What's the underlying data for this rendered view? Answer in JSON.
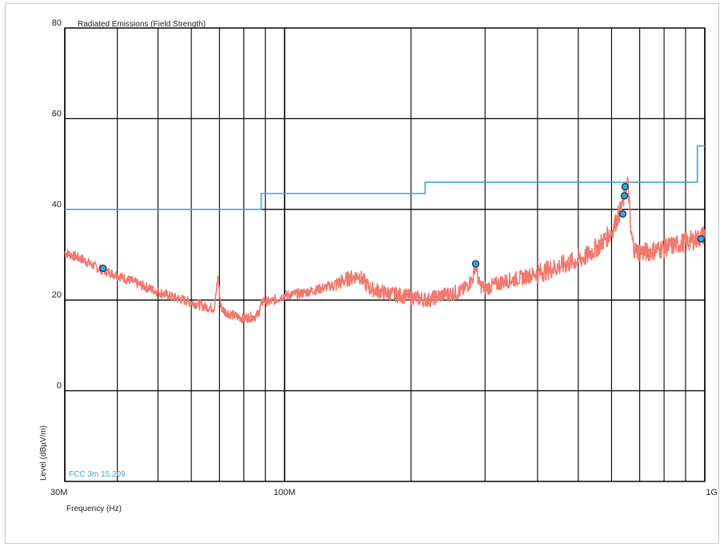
{
  "chart_data": {
    "type": "line",
    "title": "Radiated Emissions (Field Strength)",
    "xlabel": "Frequency (Hz)",
    "ylabel": "Level (dBµV/m)",
    "x_scale": "log",
    "xlim": [
      30000000,
      1000000000
    ],
    "ylim": [
      -20,
      80
    ],
    "x_tick_labels": [
      {
        "value": 30000000,
        "label": "30M"
      },
      {
        "value": 100000000,
        "label": "100M"
      },
      {
        "value": 1000000000,
        "label": "1G"
      }
    ],
    "y_ticks": [
      80,
      60,
      40,
      20,
      0
    ],
    "grid": true,
    "colors": {
      "limit": "#3aa6d8",
      "measurement": "#f07a70",
      "marker_fill": "#2fa8e0",
      "marker_stroke": "#1a3350",
      "grid": "#000000"
    },
    "series": [
      {
        "name": "FCC 3m 15.209",
        "kind": "limit-step",
        "x": [
          30000000,
          88000000,
          88000000,
          216000000,
          216000000,
          960000000,
          960000000,
          1000000000
        ],
        "y": [
          40,
          40,
          43.5,
          43.5,
          46,
          46,
          54,
          54
        ]
      },
      {
        "name": "",
        "kind": "measurement",
        "x": [
          30000000,
          33000000,
          36000000,
          40000000,
          45000000,
          50000000,
          55000000,
          60000000,
          65000000,
          68000000,
          69500000,
          70500000,
          72000000,
          76000000,
          80000000,
          86000000,
          89000000,
          92000000,
          100000000,
          110000000,
          122000000,
          133000000,
          140000000,
          150000000,
          160000000,
          175000000,
          190000000,
          205000000,
          220000000,
          235000000,
          250000000,
          265000000,
          280000000,
          285000000,
          290000000,
          300000000,
          330000000,
          370000000,
          420000000,
          470000000,
          520000000,
          560000000,
          600000000,
          625000000,
          640000000,
          648000000,
          654000000,
          660000000,
          666000000,
          680000000,
          720000000,
          800000000,
          880000000,
          960000000,
          1000000000
        ],
        "y": [
          30.5,
          29,
          27,
          25.5,
          23.5,
          21.8,
          20.5,
          19.5,
          18.5,
          18.2,
          25,
          18.5,
          17.5,
          16.5,
          16,
          16.5,
          20,
          19.5,
          21,
          21.5,
          22.5,
          23.5,
          24.5,
          25.5,
          22.5,
          21.5,
          21,
          20.5,
          20,
          21,
          21.5,
          22,
          24.5,
          28.5,
          23.5,
          22.5,
          24,
          25,
          26.5,
          28,
          29.5,
          32,
          35,
          39,
          42,
          44,
          46,
          43,
          35,
          31,
          30.5,
          31.5,
          32.5,
          33.5,
          34.5
        ]
      }
    ],
    "peak_markers": [
      {
        "x": 37000000,
        "y": 27
      },
      {
        "x": 285000000,
        "y": 28
      },
      {
        "x": 638000000,
        "y": 39
      },
      {
        "x": 644000000,
        "y": 43
      },
      {
        "x": 646000000,
        "y": 45
      },
      {
        "x": 980000000,
        "y": 33.5
      }
    ]
  }
}
